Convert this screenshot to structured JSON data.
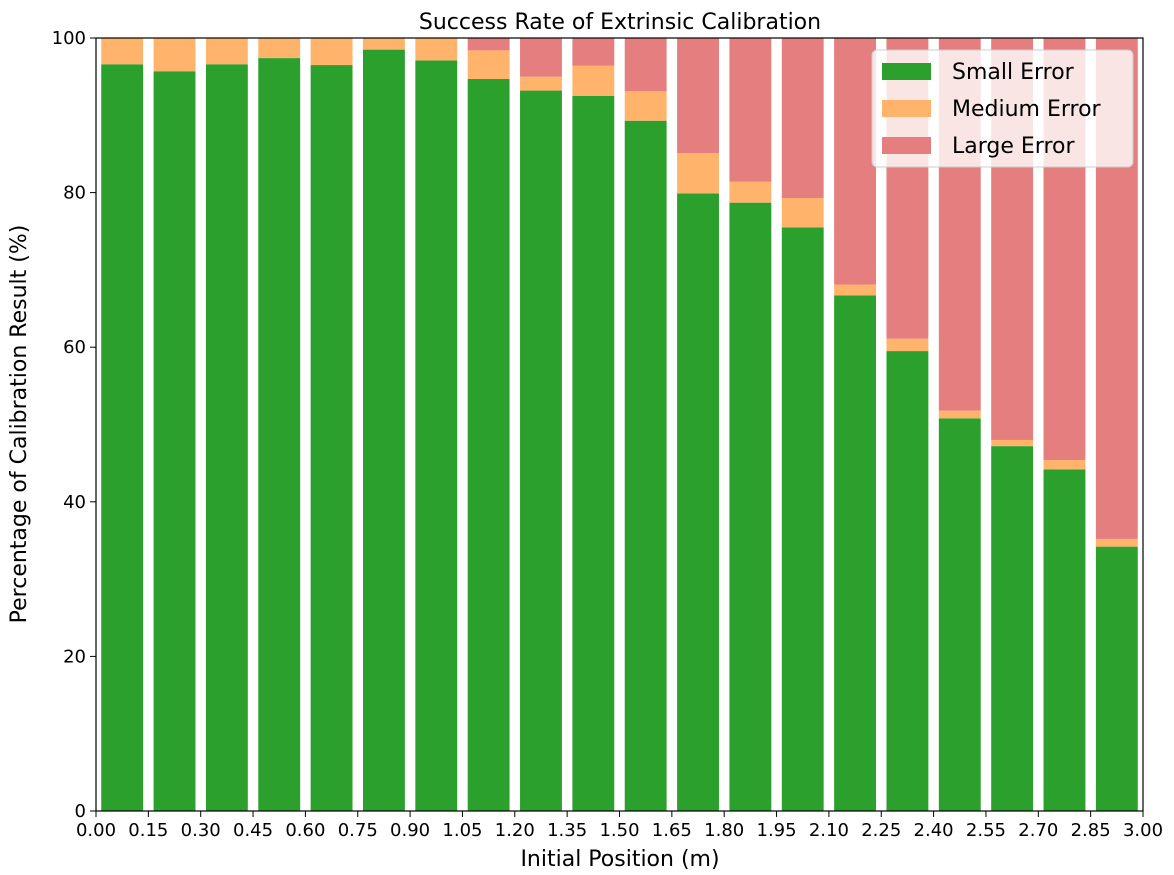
{
  "chart_data": {
    "type": "bar",
    "stacked": true,
    "title": "Success Rate of Extrinsic Calibration",
    "xlabel": "Initial Position (m)",
    "ylabel": "Percentage of Calibration Result (%)",
    "xlim": [
      0.0,
      3.0
    ],
    "ylim": [
      0,
      100
    ],
    "grid": false,
    "legend_position": "top-right",
    "x_ticks": [
      "0.00",
      "0.15",
      "0.30",
      "0.45",
      "0.60",
      "0.75",
      "0.90",
      "1.05",
      "1.20",
      "1.35",
      "1.50",
      "1.65",
      "1.80",
      "1.95",
      "2.10",
      "2.25",
      "2.40",
      "2.55",
      "2.70",
      "2.85",
      "3.00"
    ],
    "y_ticks": [
      0,
      20,
      40,
      60,
      80,
      100
    ],
    "bar_centers": [
      0.075,
      0.225,
      0.375,
      0.525,
      0.675,
      0.825,
      0.975,
      1.125,
      1.275,
      1.425,
      1.575,
      1.725,
      1.875,
      2.025,
      2.175,
      2.325,
      2.475,
      2.625,
      2.775,
      2.925
    ],
    "bar_width": 0.12,
    "series": [
      {
        "name": "Small Error",
        "color": "#2ca02c",
        "values": [
          96.6,
          95.7,
          96.6,
          97.4,
          96.5,
          98.5,
          97.1,
          94.7,
          93.2,
          92.5,
          89.3,
          79.9,
          78.7,
          75.5,
          66.7,
          59.5,
          50.8,
          47.2,
          44.2,
          34.2
        ]
      },
      {
        "name": "Medium Error",
        "color": "#ffb36b",
        "values": [
          3.4,
          4.3,
          3.4,
          2.6,
          3.5,
          1.5,
          2.9,
          3.7,
          1.8,
          3.9,
          3.8,
          5.2,
          2.7,
          3.8,
          1.4,
          1.6,
          1.0,
          0.8,
          1.2,
          1.0
        ]
      },
      {
        "name": "Large Error",
        "color": "#e57e7e",
        "values": [
          0,
          0,
          0,
          0,
          0,
          0,
          0,
          1.6,
          5.0,
          3.6,
          6.9,
          14.9,
          18.6,
          20.7,
          31.9,
          38.9,
          48.2,
          52.0,
          54.6,
          64.8
        ]
      }
    ]
  }
}
